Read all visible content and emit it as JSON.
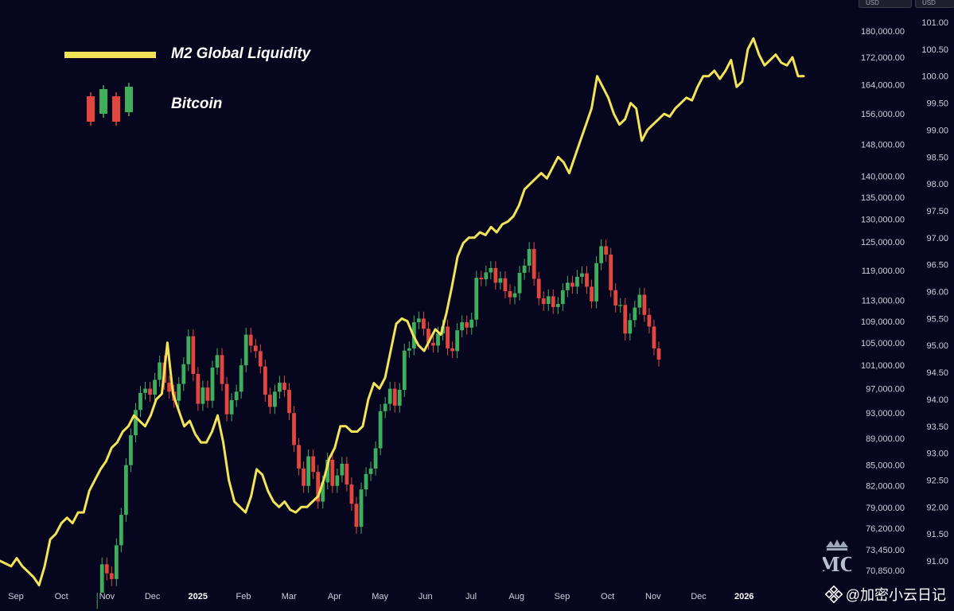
{
  "legend": {
    "m2_label": "M2 Global Liquidity",
    "btc_label": "Bitcoin",
    "m2_color": "#f3e356",
    "up_color": "#3fae5c",
    "down_color": "#e2463f"
  },
  "currency_pills": [
    "USD",
    "USD"
  ],
  "watermark": {
    "text": "@加密小云日记",
    "icon": "binance-diamond-icon"
  },
  "logo": {
    "text": "MC",
    "icon": "crown-icon"
  },
  "chart_data": {
    "type": "line",
    "x_ticks": [
      {
        "label": "Sep",
        "bold": false
      },
      {
        "label": "Oct",
        "bold": false
      },
      {
        "label": "Nov",
        "bold": false
      },
      {
        "label": "Dec",
        "bold": false
      },
      {
        "label": "2025",
        "bold": true
      },
      {
        "label": "Feb",
        "bold": false
      },
      {
        "label": "Mar",
        "bold": false
      },
      {
        "label": "Apr",
        "bold": false
      },
      {
        "label": "May",
        "bold": false
      },
      {
        "label": "Jun",
        "bold": false
      },
      {
        "label": "Jul",
        "bold": false
      },
      {
        "label": "Aug",
        "bold": false
      },
      {
        "label": "Sep",
        "bold": false
      },
      {
        "label": "Oct",
        "bold": false
      },
      {
        "label": "Nov",
        "bold": false
      },
      {
        "label": "Dec",
        "bold": false
      },
      {
        "label": "2026",
        "bold": true
      }
    ],
    "btc_axis": {
      "scale": "log",
      "ticks": [
        "180,000.00",
        "172,000.00",
        "164,000.00",
        "156,000.00",
        "148,000.00",
        "140,000.00",
        "135,000.00",
        "130,000.00",
        "125,000.00",
        "119,000.00",
        "113,000.00",
        "109,000.00",
        "105,000.00",
        "101,000.00",
        "97,000.00",
        "93,000.00",
        "89,000.00",
        "85,000.00",
        "82,000.00",
        "79,000.00",
        "76,200.00",
        "73,450.00",
        "70,850.00"
      ]
    },
    "m2_axis": {
      "ticks": [
        "101.00",
        "100.50",
        "100.00",
        "99.50",
        "99.00",
        "98.50",
        "98.00",
        "97.50",
        "97.00",
        "96.50",
        "96.00",
        "95.50",
        "95.00",
        "94.50",
        "94.00",
        "93.50",
        "93.00",
        "92.50",
        "92.00",
        "91.50",
        "91.00"
      ],
      "range": [
        90.75,
        101.0
      ]
    },
    "series": [
      {
        "name": "M2 Global Liquidity",
        "x_start": "Sep",
        "values": [
          91.0,
          90.95,
          90.9,
          91.05,
          90.9,
          90.8,
          90.7,
          90.55,
          90.9,
          91.4,
          91.5,
          91.7,
          91.8,
          91.7,
          91.9,
          91.9,
          92.3,
          92.5,
          92.7,
          92.85,
          93.1,
          93.2,
          93.4,
          93.5,
          93.7,
          93.6,
          93.5,
          93.7,
          94.0,
          94.1,
          95.05,
          94.1,
          93.8,
          93.5,
          93.6,
          93.35,
          93.2,
          93.2,
          93.4,
          93.7,
          93.2,
          92.5,
          92.1,
          92.0,
          91.9,
          92.2,
          92.7,
          92.6,
          92.3,
          92.1,
          92.0,
          92.1,
          91.95,
          91.9,
          92.0,
          92.0,
          92.1,
          92.2,
          92.5,
          92.9,
          93.1,
          93.5,
          93.5,
          93.4,
          93.4,
          93.5,
          94.0,
          94.3,
          94.2,
          94.4,
          94.9,
          95.4,
          95.5,
          95.45,
          95.2,
          95.0,
          94.9,
          95.1,
          95.3,
          95.2,
          95.6,
          96.1,
          96.65,
          96.9,
          97.0,
          97.0,
          97.1,
          97.05,
          97.2,
          97.1,
          97.25,
          97.3,
          97.4,
          97.6,
          97.9,
          98.0,
          98.1,
          98.2,
          98.1,
          98.3,
          98.5,
          98.4,
          98.2,
          98.5,
          98.8,
          99.1,
          99.4,
          100.0,
          99.8,
          99.6,
          99.3,
          99.1,
          99.2,
          99.5,
          99.4,
          98.8,
          99.0,
          99.1,
          99.2,
          99.3,
          99.25,
          99.4,
          99.5,
          99.6,
          99.55,
          99.8,
          100.0,
          100.0,
          100.1,
          99.95,
          100.1,
          100.3,
          99.8,
          99.9,
          100.5,
          100.7,
          100.4,
          100.2,
          100.3,
          100.4,
          100.25,
          100.2,
          100.35,
          100.0,
          100.0
        ]
      },
      {
        "name": "Bitcoin",
        "x_start": "Oct",
        "values": [
          65500,
          71600,
          70500,
          69800,
          74000,
          78000,
          85000,
          89500,
          93500,
          96300,
          97000,
          96000,
          98500,
          101500,
          98000,
          96500,
          95000,
          97800,
          101200,
          106200,
          99500,
          94500,
          97200,
          95000,
          100600,
          102800,
          97800,
          92800,
          95100,
          96500,
          101000,
          106500,
          104500,
          103500,
          100800,
          96000,
          94000,
          96500,
          98000,
          96800,
          93000,
          88000,
          84500,
          82000,
          86300,
          84000,
          79800,
          82500,
          85800,
          82000,
          83500,
          85200,
          82200,
          79500,
          76400,
          81500,
          83700,
          84500,
          87500,
          93300,
          94500,
          97000,
          94200,
          96800,
          103600,
          104000,
          108800,
          109500,
          107600,
          105000,
          104500,
          106700,
          108000,
          104000,
          103500,
          107300,
          108800,
          107800,
          109300,
          117500,
          117200,
          118600,
          119500,
          116500,
          117400,
          114800,
          113600,
          114400,
          118500,
          120000,
          123500,
          117300,
          113400,
          112300,
          113800,
          111700,
          112300,
          115000,
          116500,
          115700,
          117700,
          118400,
          115700,
          112800,
          120500,
          124100,
          122300,
          115000,
          112000,
          112100,
          106700,
          109200,
          111600,
          114100,
          110200,
          108000,
          104000,
          102000
        ]
      }
    ]
  }
}
